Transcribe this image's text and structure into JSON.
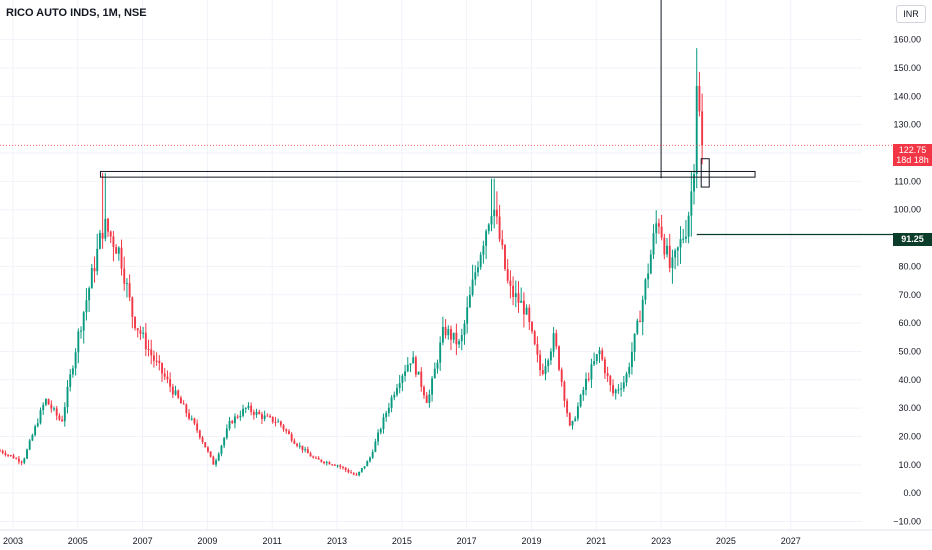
{
  "header": {
    "title": "RICO AUTO INDS, 1M, NSE",
    "currency": "INR"
  },
  "colors": {
    "up": "#089981",
    "down": "#f23645",
    "grid": "#f0f3fa",
    "axis_text": "#131722",
    "horizontal_line": "#0b3d2a",
    "last_price_line": "#f23645"
  },
  "chart_data": {
    "type": "candlestick",
    "symbol": "RICO AUTO INDS",
    "interval": "1M",
    "exchange": "NSE",
    "currency": "INR",
    "x_ticks": [
      "2003",
      "2005",
      "2007",
      "2009",
      "2011",
      "2013",
      "2015",
      "2017",
      "2019",
      "2021",
      "2023",
      "2025",
      "2027"
    ],
    "y_ticks": [
      "−10.00",
      "0.00",
      "10.00",
      "20.00",
      "30.00",
      "40.00",
      "50.00",
      "60.00",
      "70.00",
      "80.00",
      "90.00",
      "100.00",
      "110.00",
      "120.00",
      "130.00",
      "140.00",
      "150.00",
      "160.00"
    ],
    "xlim": [
      2002.6,
      2029.2
    ],
    "ylim": [
      -13,
      174
    ],
    "last_price": {
      "value": "122.75",
      "countdown": "18d 18h"
    },
    "horizontal_line": {
      "value": "91.25"
    },
    "resistance_zone": {
      "from_year": 2005.7,
      "to_year": 2025.9,
      "low": 111.5,
      "high": 113.5
    },
    "vertical_marker": {
      "year": 2023.0
    },
    "price_path": [
      [
        2002.6,
        15
      ],
      [
        2003.3,
        11
      ],
      [
        2004.0,
        33
      ],
      [
        2004.5,
        25
      ],
      [
        2005.0,
        55
      ],
      [
        2005.5,
        80
      ],
      [
        2005.8,
        95
      ],
      [
        2006.3,
        85
      ],
      [
        2006.7,
        62
      ],
      [
        2007.3,
        48
      ],
      [
        2008.0,
        35
      ],
      [
        2008.7,
        22
      ],
      [
        2009.2,
        10
      ],
      [
        2009.7,
        25
      ],
      [
        2010.2,
        30
      ],
      [
        2010.7,
        27
      ],
      [
        2011.2,
        25
      ],
      [
        2011.7,
        18
      ],
      [
        2012.3,
        12
      ],
      [
        2013.0,
        10
      ],
      [
        2013.6,
        6
      ],
      [
        2014.0,
        12
      ],
      [
        2014.5,
        28
      ],
      [
        2014.9,
        40
      ],
      [
        2015.3,
        48
      ],
      [
        2015.8,
        32
      ],
      [
        2016.3,
        58
      ],
      [
        2016.8,
        52
      ],
      [
        2017.3,
        80
      ],
      [
        2017.8,
        103
      ],
      [
        2018.3,
        72
      ],
      [
        2018.8,
        65
      ],
      [
        2019.3,
        42
      ],
      [
        2019.7,
        55
      ],
      [
        2020.2,
        22
      ],
      [
        2020.7,
        40
      ],
      [
        2021.1,
        50
      ],
      [
        2021.5,
        35
      ],
      [
        2021.9,
        40
      ],
      [
        2022.3,
        60
      ],
      [
        2022.9,
        98
      ],
      [
        2023.3,
        78
      ],
      [
        2023.8,
        95
      ],
      [
        2024.0,
        112
      ],
      [
        2024.1,
        147
      ],
      [
        2024.2,
        130
      ],
      [
        2024.3,
        122.75
      ]
    ]
  }
}
